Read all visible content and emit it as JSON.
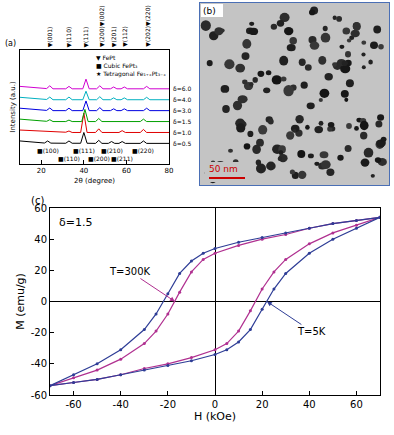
{
  "chart_data": [
    {
      "panel": "(a)",
      "type": "line",
      "line_style": "solid",
      "grid": false,
      "tick_labels": "x",
      "x_label": "2θ (degree)",
      "y_label": "Intensity (a.u.)",
      "xlim": [
        10,
        80
      ],
      "xticks": [
        20,
        40,
        60,
        80
      ],
      "ylim": [
        -0.4,
        9
      ],
      "key": [
        {
          "symbol": "▼",
          "text": "FePt"
        },
        {
          "symbol": "■",
          "text": "Cubic FePt₃"
        },
        {
          "symbol": "★",
          "text": "Tetragonal Fe₁₊ₓPt₃₋ₓ"
        }
      ],
      "peak_labels_top": [
        {
          "x": 24,
          "text": "▼(001)"
        },
        {
          "x": 33,
          "text": "▼(110)"
        },
        {
          "x": 41,
          "text": "▼(111)"
        },
        {
          "x": 48,
          "text": "▼(200)▼(002)"
        },
        {
          "x": 54,
          "text": "▼(201)"
        },
        {
          "x": 59,
          "text": "▼(112)"
        },
        {
          "x": 69.5,
          "text": "▼(202)▼(220)"
        }
      ],
      "peak_labels_bottom": [
        {
          "x": 23,
          "text": "■(100)"
        },
        {
          "x": 33,
          "text": "■(110)"
        },
        {
          "x": 40,
          "text": "■(111)"
        },
        {
          "x": 47,
          "text": "■(200)"
        },
        {
          "x": 53,
          "text": "■(210)"
        },
        {
          "x": 58,
          "text": "■(211)"
        },
        {
          "x": 68,
          "text": "■(220)"
        }
      ],
      "series": [
        {
          "name": "δ=0.5",
          "color": "#000000",
          "x": [
            10,
            21.5,
            23,
            24.5,
            31.5,
            33,
            34.5,
            38.5,
            40,
            41.5,
            45.5,
            47,
            48.5,
            51.5,
            53,
            54.5,
            56.5,
            58,
            59.5,
            66.5,
            68,
            69.5,
            80
          ],
          "values": [
            1.5,
            1.33,
            1.5,
            1.32,
            1.31,
            1.5,
            1.31,
            1.31,
            2.2,
            1.31,
            1.3,
            1.55,
            1.3,
            1.3,
            1.45,
            1.3,
            1.3,
            1.45,
            1.3,
            1.3,
            1.5,
            1.3,
            1.3
          ]
        },
        {
          "name": "δ=1.0",
          "color": "#e00000",
          "x": [
            10,
            31.5,
            33,
            34.5,
            38.5,
            40,
            41.5,
            45.5,
            47,
            48.5,
            56.5,
            58,
            59.5,
            66.5,
            68,
            69.5,
            80
          ],
          "values": [
            2.4,
            2.22,
            2.32,
            2.2,
            2.2,
            3.8,
            2.2,
            2.2,
            2.5,
            2.2,
            2.2,
            2.35,
            2.2,
            2.2,
            2.45,
            2.2,
            2.2
          ]
        },
        {
          "name": "δ=1.5",
          "color": "#00a000",
          "x": [
            10,
            22.5,
            24,
            25.5,
            31.5,
            33,
            34.5,
            39,
            40.5,
            42,
            45.5,
            47,
            48.5,
            66.5,
            68,
            69.5,
            80
          ],
          "values": [
            3.3,
            3.12,
            3.25,
            3.1,
            3.1,
            3.22,
            3.1,
            3.1,
            4.1,
            3.1,
            3.1,
            3.35,
            3.1,
            3.1,
            3.3,
            3.1,
            3.1
          ]
        },
        {
          "name": "δ=3.0",
          "color": "#0000e0",
          "x": [
            10,
            22.5,
            24,
            25.5,
            31.5,
            33,
            34.5,
            39.5,
            41,
            42.5,
            46,
            47.5,
            49,
            52.5,
            54,
            55.5,
            57.5,
            59,
            60.5,
            68,
            69.5,
            71,
            80
          ],
          "values": [
            4.2,
            4.02,
            4.22,
            4.0,
            4.0,
            4.2,
            4.0,
            4.0,
            4.8,
            4.0,
            4.0,
            4.25,
            4.0,
            4.0,
            4.15,
            4.0,
            4.0,
            4.15,
            4.0,
            4.0,
            4.2,
            4.0,
            4.0
          ]
        },
        {
          "name": "δ=4.0",
          "color": "#00b0c0",
          "x": [
            10,
            22.5,
            24,
            25.5,
            31.5,
            33,
            34.5,
            39.5,
            41,
            42.5,
            46,
            47.5,
            49,
            52.5,
            54,
            55.5,
            57.5,
            59,
            60.5,
            68,
            69.5,
            71,
            80
          ],
          "values": [
            5.1,
            4.92,
            5.12,
            4.9,
            4.9,
            5.12,
            4.9,
            4.9,
            5.6,
            4.9,
            4.9,
            5.15,
            4.9,
            4.9,
            5.05,
            4.9,
            4.9,
            5.05,
            4.9,
            4.9,
            5.1,
            4.9,
            4.9
          ]
        },
        {
          "name": "δ=6.0",
          "color": "#d000d0",
          "x": [
            10,
            22.5,
            24,
            25.5,
            31.5,
            33,
            34.5,
            39.5,
            41,
            42.5,
            46,
            47.5,
            49,
            52.5,
            54,
            55.5,
            57.5,
            59,
            60.5,
            68,
            69.5,
            71,
            80
          ],
          "values": [
            6.0,
            5.82,
            6.05,
            5.8,
            5.8,
            6.0,
            5.8,
            5.8,
            6.6,
            5.8,
            5.8,
            6.05,
            5.8,
            5.8,
            5.95,
            5.8,
            5.8,
            5.95,
            5.8,
            5.8,
            6.0,
            5.8,
            5.8
          ]
        }
      ]
    },
    {
      "panel": "(c)",
      "type": "line",
      "marker": "circle",
      "line_style": "solid",
      "grid": false,
      "title": "δ=1.5",
      "x_label": "H (kOe)",
      "y_label": "M (emu/g)",
      "xlim": [
        -70,
        70
      ],
      "xticks": [
        -60,
        -40,
        -20,
        0,
        20,
        40,
        60
      ],
      "ylim": [
        -60,
        60
      ],
      "yticks": [
        -60,
        -40,
        -20,
        0,
        20,
        40,
        60
      ],
      "series": [
        {
          "name": "T=300K",
          "color": "#b03090",
          "arrow_to": [
            -17,
            0
          ],
          "x": [
            70,
            60,
            50,
            40,
            30,
            20,
            10,
            0,
            -5,
            -10,
            -15,
            -20,
            -25,
            -30,
            -40,
            -50,
            -60,
            -70,
            -60,
            -50,
            -40,
            -30,
            -20,
            -10,
            0,
            5,
            10,
            15,
            20,
            25,
            30,
            40,
            50,
            60,
            70
          ],
          "values": [
            54,
            52,
            50,
            47,
            43,
            40,
            36,
            31,
            27,
            19,
            6,
            -8,
            -19,
            -27,
            -37,
            -44,
            -49,
            -54,
            -52,
            -50,
            -47,
            -43,
            -40,
            -36,
            -31,
            -27,
            -19,
            -6,
            8,
            19,
            27,
            37,
            44,
            49,
            54
          ]
        },
        {
          "name": "T=5K",
          "color": "#2e3d96",
          "arrow_to": [
            22,
            0
          ],
          "x": [
            70,
            60,
            50,
            40,
            30,
            20,
            10,
            0,
            -5,
            -10,
            -15,
            -20,
            -25,
            -30,
            -40,
            -50,
            -60,
            -70,
            -60,
            -50,
            -40,
            -30,
            -20,
            -10,
            0,
            5,
            10,
            15,
            20,
            25,
            30,
            40,
            50,
            60,
            70
          ],
          "values": [
            54,
            52,
            50,
            47,
            44,
            41,
            38,
            34,
            31,
            26,
            18,
            5,
            -8,
            -18,
            -31,
            -40,
            -47,
            -54,
            -52,
            -50,
            -47,
            -44,
            -41,
            -38,
            -34,
            -31,
            -26,
            -18,
            -5,
            8,
            18,
            31,
            40,
            47,
            54
          ]
        }
      ]
    }
  ],
  "image": {
    "panel": "(b)",
    "scale_bar": "50 nm"
  }
}
